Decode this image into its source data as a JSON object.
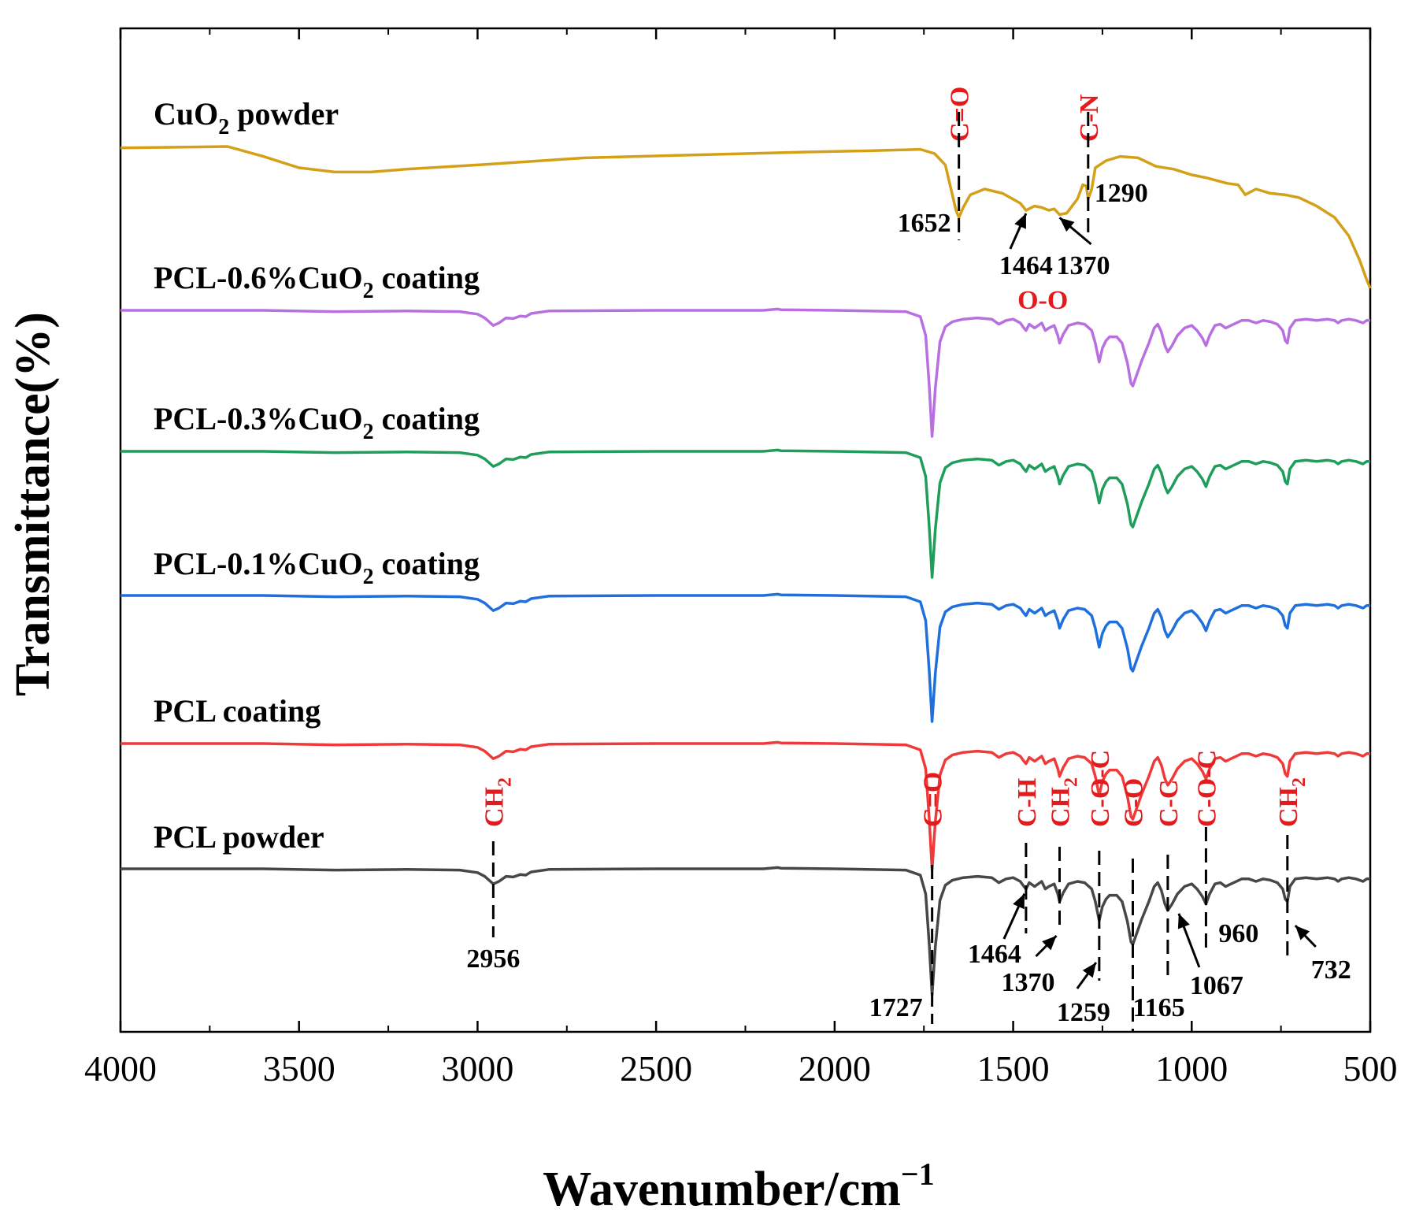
{
  "chart_data": {
    "type": "line",
    "xlabel": "Wavenumber/cm",
    "xlabel_sup": "−1",
    "ylabel": "Transmittance(%)",
    "xlim": [
      4000,
      500
    ],
    "xticks": [
      "4000",
      "3500",
      "3000",
      "2500",
      "2000",
      "1500",
      "1000",
      "500"
    ],
    "grid": false,
    "y_values_shown": false,
    "series": [
      {
        "name": "CuO2 powder",
        "label_parts": [
          "CuO",
          "2",
          " powder"
        ],
        "color": "#d4a017",
        "points": [
          [
            4000,
            0.99
          ],
          [
            3700,
            1.0
          ],
          [
            3600,
            0.93
          ],
          [
            3500,
            0.85
          ],
          [
            3400,
            0.82
          ],
          [
            3300,
            0.82
          ],
          [
            3200,
            0.84
          ],
          [
            3000,
            0.87
          ],
          [
            2700,
            0.92
          ],
          [
            2400,
            0.94
          ],
          [
            2100,
            0.96
          ],
          [
            1900,
            0.97
          ],
          [
            1760,
            0.98
          ],
          [
            1720,
            0.95
          ],
          [
            1690,
            0.87
          ],
          [
            1660,
            0.55
          ],
          [
            1652,
            0.5
          ],
          [
            1640,
            0.57
          ],
          [
            1620,
            0.66
          ],
          [
            1580,
            0.7
          ],
          [
            1530,
            0.67
          ],
          [
            1480,
            0.6
          ],
          [
            1464,
            0.55
          ],
          [
            1440,
            0.58
          ],
          [
            1420,
            0.57
          ],
          [
            1400,
            0.55
          ],
          [
            1385,
            0.56
          ],
          [
            1370,
            0.52
          ],
          [
            1350,
            0.53
          ],
          [
            1320,
            0.63
          ],
          [
            1305,
            0.73
          ],
          [
            1295,
            0.72
          ],
          [
            1290,
            0.63
          ],
          [
            1280,
            0.7
          ],
          [
            1270,
            0.85
          ],
          [
            1240,
            0.9
          ],
          [
            1200,
            0.93
          ],
          [
            1150,
            0.92
          ],
          [
            1100,
            0.86
          ],
          [
            1050,
            0.84
          ],
          [
            1000,
            0.8
          ],
          [
            960,
            0.78
          ],
          [
            900,
            0.74
          ],
          [
            870,
            0.73
          ],
          [
            850,
            0.66
          ],
          [
            820,
            0.7
          ],
          [
            780,
            0.67
          ],
          [
            740,
            0.66
          ],
          [
            700,
            0.64
          ],
          [
            650,
            0.58
          ],
          [
            600,
            0.5
          ],
          [
            560,
            0.37
          ],
          [
            530,
            0.2
          ],
          [
            510,
            0.06
          ],
          [
            500,
            0.0
          ]
        ]
      },
      {
        "name": "PCL-0.6%CuO2 coating",
        "label_parts": [
          "PCL-0.6%CuO",
          "2",
          " coating"
        ],
        "color": "#b86fe0",
        "points": "pcl"
      },
      {
        "name": "PCL-0.3%CuO2 coating",
        "label_parts": [
          "PCL-0.3%CuO",
          "2",
          " coating"
        ],
        "color": "#1e9e5a",
        "points": "pcl"
      },
      {
        "name": "PCL-0.1%CuO2 coating",
        "label_parts": [
          "PCL-0.1%CuO",
          "2",
          " coating"
        ],
        "color": "#1f6fdd",
        "points": "pcl"
      },
      {
        "name": "PCL coating",
        "label_parts": [
          "PCL coating",
          "",
          ""
        ],
        "color": "#f03a3a",
        "points": "pcl"
      },
      {
        "name": "PCL powder",
        "label_parts": [
          "PCL powder",
          "",
          ""
        ],
        "color": "#474747",
        "points": "pcl"
      }
    ],
    "pcl_profile": [
      [
        4000,
        1.0
      ],
      [
        3600,
        1.0
      ],
      [
        3400,
        0.99
      ],
      [
        3200,
        0.995
      ],
      [
        3050,
        0.99
      ],
      [
        3000,
        0.97
      ],
      [
        2980,
        0.94
      ],
      [
        2956,
        0.88
      ],
      [
        2940,
        0.9
      ],
      [
        2920,
        0.94
      ],
      [
        2900,
        0.935
      ],
      [
        2880,
        0.955
      ],
      [
        2865,
        0.95
      ],
      [
        2850,
        0.975
      ],
      [
        2800,
        0.995
      ],
      [
        2500,
        1.0
      ],
      [
        2200,
        1.0
      ],
      [
        2160,
        1.01
      ],
      [
        2150,
        1.005
      ],
      [
        2000,
        1.0
      ],
      [
        1800,
        0.99
      ],
      [
        1760,
        0.95
      ],
      [
        1745,
        0.8
      ],
      [
        1735,
        0.4
      ],
      [
        1727,
        0.0
      ],
      [
        1718,
        0.38
      ],
      [
        1705,
        0.75
      ],
      [
        1690,
        0.87
      ],
      [
        1670,
        0.91
      ],
      [
        1640,
        0.93
      ],
      [
        1600,
        0.94
      ],
      [
        1560,
        0.93
      ],
      [
        1540,
        0.89
      ],
      [
        1520,
        0.92
      ],
      [
        1500,
        0.93
      ],
      [
        1480,
        0.9
      ],
      [
        1470,
        0.86
      ],
      [
        1464,
        0.84
      ],
      [
        1455,
        0.89
      ],
      [
        1440,
        0.86
      ],
      [
        1420,
        0.9
      ],
      [
        1410,
        0.84
      ],
      [
        1400,
        0.86
      ],
      [
        1385,
        0.88
      ],
      [
        1375,
        0.8
      ],
      [
        1370,
        0.74
      ],
      [
        1360,
        0.81
      ],
      [
        1345,
        0.88
      ],
      [
        1320,
        0.9
      ],
      [
        1300,
        0.89
      ],
      [
        1280,
        0.84
      ],
      [
        1270,
        0.74
      ],
      [
        1259,
        0.59
      ],
      [
        1250,
        0.7
      ],
      [
        1240,
        0.76
      ],
      [
        1230,
        0.79
      ],
      [
        1210,
        0.79
      ],
      [
        1195,
        0.74
      ],
      [
        1180,
        0.58
      ],
      [
        1170,
        0.42
      ],
      [
        1165,
        0.4
      ],
      [
        1155,
        0.48
      ],
      [
        1140,
        0.6
      ],
      [
        1120,
        0.74
      ],
      [
        1105,
        0.86
      ],
      [
        1095,
        0.89
      ],
      [
        1085,
        0.83
      ],
      [
        1075,
        0.72
      ],
      [
        1067,
        0.67
      ],
      [
        1055,
        0.72
      ],
      [
        1040,
        0.8
      ],
      [
        1020,
        0.86
      ],
      [
        1000,
        0.88
      ],
      [
        985,
        0.84
      ],
      [
        970,
        0.78
      ],
      [
        960,
        0.72
      ],
      [
        950,
        0.8
      ],
      [
        935,
        0.88
      ],
      [
        920,
        0.89
      ],
      [
        905,
        0.86
      ],
      [
        890,
        0.88
      ],
      [
        860,
        0.92
      ],
      [
        840,
        0.92
      ],
      [
        820,
        0.9
      ],
      [
        800,
        0.92
      ],
      [
        780,
        0.91
      ],
      [
        760,
        0.89
      ],
      [
        745,
        0.84
      ],
      [
        738,
        0.76
      ],
      [
        732,
        0.74
      ],
      [
        725,
        0.86
      ],
      [
        710,
        0.92
      ],
      [
        680,
        0.93
      ],
      [
        650,
        0.92
      ],
      [
        620,
        0.93
      ],
      [
        600,
        0.92
      ],
      [
        590,
        0.9
      ],
      [
        580,
        0.92
      ],
      [
        560,
        0.93
      ],
      [
        540,
        0.92
      ],
      [
        520,
        0.9
      ],
      [
        510,
        0.92
      ],
      [
        500,
        0.92
      ]
    ],
    "peak_labels": [
      {
        "series": "CuO2 powder",
        "value": "1652",
        "x": 1652
      },
      {
        "series": "CuO2 powder",
        "value": "1464",
        "x": 1464
      },
      {
        "series": "CuO2 powder",
        "value": "1370",
        "x": 1370
      },
      {
        "series": "CuO2 powder",
        "value": "1290",
        "x": 1290
      },
      {
        "series": "PCL powder",
        "value": "2956",
        "x": 2956
      },
      {
        "series": "PCL powder",
        "value": "1727",
        "x": 1727
      },
      {
        "series": "PCL powder",
        "value": "1464",
        "x": 1464
      },
      {
        "series": "PCL powder",
        "value": "1370",
        "x": 1370
      },
      {
        "series": "PCL powder",
        "value": "1259",
        "x": 1259
      },
      {
        "series": "PCL powder",
        "value": "1165",
        "x": 1165
      },
      {
        "series": "PCL powder",
        "value": "1067",
        "x": 1067
      },
      {
        "series": "PCL powder",
        "value": "960",
        "x": 960
      },
      {
        "series": "PCL powder",
        "value": "732",
        "x": 732
      }
    ],
    "group_labels": [
      {
        "series": "CuO2 powder",
        "text": "C=O",
        "x": 1652
      },
      {
        "series": "CuO2 powder",
        "text": "C-N",
        "x": 1290
      },
      {
        "series": "CuO2 powder",
        "text": "O-O",
        "x": 1417
      },
      {
        "series": "PCL powder",
        "text": "CH",
        "sub": "2",
        "x": 2956
      },
      {
        "series": "PCL powder",
        "text": "C=O",
        "x": 1727
      },
      {
        "series": "PCL powder",
        "text": "C-H",
        "x": 1464
      },
      {
        "series": "PCL powder",
        "text": "CH",
        "sub": "2",
        "x": 1370
      },
      {
        "series": "PCL powder",
        "text": "C-O-C",
        "x": 1259
      },
      {
        "series": "PCL powder",
        "text": "C-O",
        "x": 1165
      },
      {
        "series": "PCL powder",
        "text": "C-C",
        "x": 1067
      },
      {
        "series": "PCL powder",
        "text": "C-O-C",
        "x": 960
      },
      {
        "series": "PCL powder",
        "text": "CH",
        "sub": "2",
        "x": 732
      }
    ],
    "legend": "inline-labels"
  }
}
